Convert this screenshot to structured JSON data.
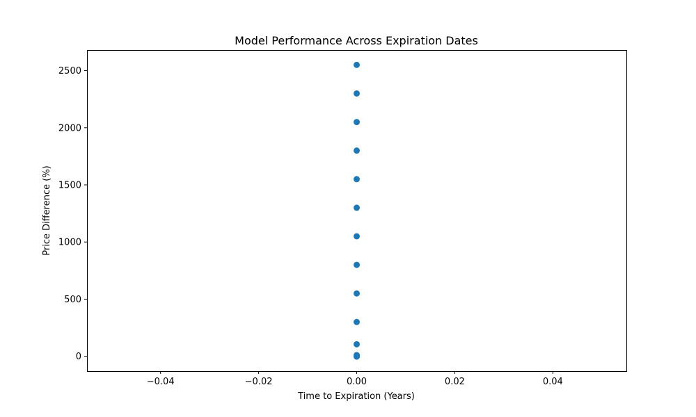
{
  "chart_data": {
    "type": "scatter",
    "title": "Model Performance Across Expiration Dates",
    "xlabel": "Time to Expiration (Years)",
    "ylabel": "Price Difference (%)",
    "xlim": [
      -0.055,
      0.055
    ],
    "ylim": [
      -130,
      2680
    ],
    "x_ticks": [
      -0.04,
      -0.02,
      0.0,
      0.02,
      0.04
    ],
    "x_tick_labels": [
      "−0.04",
      "−0.02",
      "0.00",
      "0.02",
      "0.04"
    ],
    "y_ticks": [
      0,
      500,
      1000,
      1500,
      2000,
      2500
    ],
    "y_tick_labels": [
      "0",
      "500",
      "1000",
      "1500",
      "2000",
      "2500"
    ],
    "grid": false,
    "marker_color": "#1f77b4",
    "series": [
      {
        "points": [
          {
            "x": 0.0,
            "y": 2550
          },
          {
            "x": 0.0,
            "y": 2300
          },
          {
            "x": 0.0,
            "y": 2050
          },
          {
            "x": 0.0,
            "y": 1800
          },
          {
            "x": 0.0,
            "y": 1550
          },
          {
            "x": 0.0,
            "y": 1300
          },
          {
            "x": 0.0,
            "y": 1050
          },
          {
            "x": 0.0,
            "y": 800
          },
          {
            "x": 0.0,
            "y": 550
          },
          {
            "x": 0.0,
            "y": 300
          },
          {
            "x": 0.0,
            "y": 105
          },
          {
            "x": 0.0,
            "y": 10
          },
          {
            "x": 0.0,
            "y": 5
          },
          {
            "x": 0.0,
            "y": 0
          },
          {
            "x": 0.0,
            "y": -3
          }
        ]
      }
    ]
  }
}
